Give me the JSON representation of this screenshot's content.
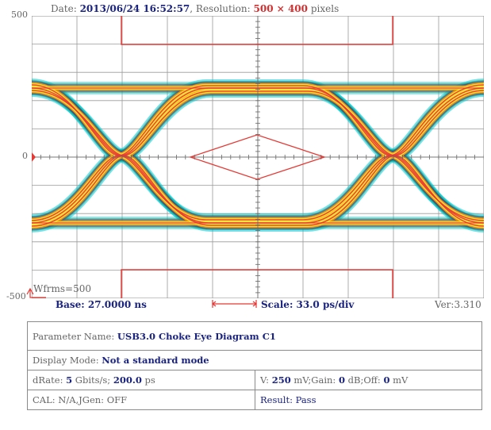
{
  "header": {
    "date_label": "Date:",
    "date_value": "2013/06/24 16:52:57",
    "res_label": "Resolution:",
    "res_value": "500 × 400",
    "res_unit": "pixels"
  },
  "axis": {
    "top": "500",
    "mid": "0",
    "bottom": "-500"
  },
  "plot": {
    "wfrms": "Wfrms=500",
    "base": "Base: 27.0000 ns",
    "scale": "Scale: 33.0 ps/div",
    "version": "Ver:3.310"
  },
  "params": {
    "param_name_label": "Parameter Name:",
    "param_name_value": "USB3.0 Choke Eye Diagram C1",
    "display_mode_label": "Display Mode:",
    "display_mode_value": "Not a standard mode",
    "drate_label": "dRate:",
    "drate_value": "5",
    "drate_unit": "Gbits/s;",
    "drate_ps": "200.0",
    "drate_ps_unit": "ps",
    "v_label": "V:",
    "v_value": "250",
    "v_unit": "mV;",
    "gain_label": "Gain:",
    "gain_value": "0",
    "gain_unit": "dB;",
    "off_label": "Off:",
    "off_value": "0",
    "off_unit": "mV",
    "cal_text": "CAL: N/A,JGen: OFF",
    "result_text": "Result: Pass"
  },
  "colors": {
    "grid": "#9a9a9a",
    "mask": "#e53935",
    "text_value": "#1a237e"
  }
}
